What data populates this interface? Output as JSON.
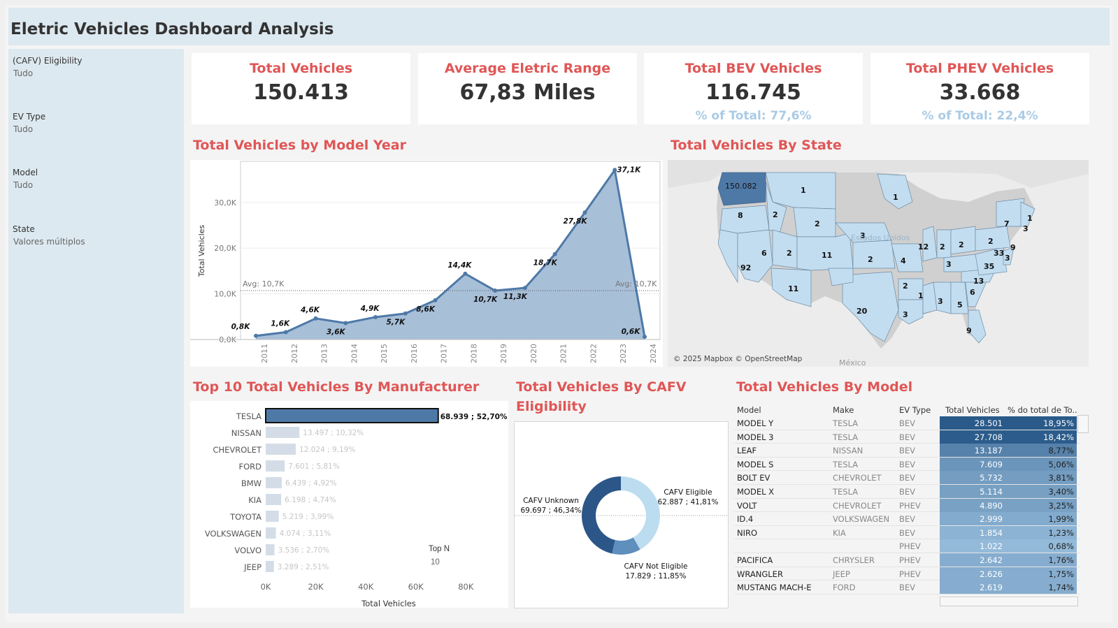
{
  "title": "Eletric Vehicles Dashboard Analysis",
  "filters": [
    {
      "label": "(CAFV) Eligibility",
      "value": "Tudo"
    },
    {
      "label": "EV Type",
      "value": "Tudo"
    },
    {
      "label": "Model",
      "value": "Tudo"
    },
    {
      "label": "State",
      "value": "Valores múltiplos"
    }
  ],
  "kpis": [
    {
      "title": "Total Vehicles",
      "value": "150.413",
      "sub": ""
    },
    {
      "title": "Average Eletric Range",
      "value": "67,83 Miles",
      "sub": ""
    },
    {
      "title": "Total BEV Vehicles",
      "value": "116.745",
      "sub": "% of Total: 77,6%"
    },
    {
      "title": "Total PHEV Vehicles",
      "value": "33.668",
      "sub": "% of Total: 22,4%"
    }
  ],
  "sections": {
    "model_year": "Total Vehicles by Model Year",
    "state": "Total Vehicles By State",
    "manufacturer": "Top 10 Total Vehicles By Manufacturer",
    "cafv": "Total Vehicles By CAFV Eligibility",
    "model": "Total Vehicles By Model"
  },
  "map": {
    "attribution": "© 2025 Mapbox © OpenStreetMap",
    "labels": [
      "150.082",
      "1",
      "1",
      "8",
      "2",
      "2",
      "3",
      "7",
      "3",
      "1",
      "9",
      "2",
      "2",
      "2",
      "12",
      "2",
      "6",
      "2",
      "11",
      "3",
      "4",
      "3",
      "35",
      "33",
      "92",
      "11",
      "20",
      "2",
      "13",
      "1",
      "3",
      "5",
      "6",
      "3",
      "9"
    ],
    "country_text_us": "Estados Unidos",
    "country_text_mx": "México"
  },
  "topn": {
    "label": "Top N",
    "value": "10"
  },
  "colors": {
    "accent": "#e05656",
    "line": "#4e79a7",
    "area": "#a3bcd6",
    "light": "#a9cbe5",
    "dark": "#2a5a8a"
  },
  "chart_data": [
    {
      "type": "area",
      "title": "Total Vehicles by Model Year",
      "ylabel": "Total Vehicles",
      "x": [
        "2011",
        "2012",
        "2013",
        "2014",
        "2015",
        "2016",
        "2017",
        "2018",
        "2019",
        "2020",
        "2021",
        "2022",
        "2023",
        "2024"
      ],
      "values": [
        800,
        1600,
        4600,
        3600,
        4900,
        5700,
        8600,
        14400,
        10700,
        11300,
        18700,
        27800,
        37100,
        600
      ],
      "value_labels": [
        "0,8K",
        "1,6K",
        "4,6K",
        "3,6K",
        "4,9K",
        "5,7K",
        "8,6K",
        "14,4K",
        "10,7K",
        "11,3K",
        "18,7K",
        "27,8K",
        "37,1K",
        "0,6K"
      ],
      "yticks": [
        0,
        10000,
        20000,
        30000
      ],
      "ytick_labels": [
        "0,0K",
        "10,0K",
        "20,0K",
        "30,0K"
      ],
      "ylim": [
        0,
        39000
      ],
      "avg_value": 10700,
      "avg_label": "Avg: 10,7K"
    },
    {
      "type": "bar",
      "title": "Top 10 Total Vehicles By Manufacturer",
      "xlabel": "Total Vehicles",
      "categories": [
        "TESLA",
        "NISSAN",
        "CHEVROLET",
        "FORD",
        "BMW",
        "KIA",
        "TOYOTA",
        "VOLKSWAGEN",
        "VOLVO",
        "JEEP"
      ],
      "values": [
        68939,
        13497,
        12024,
        7601,
        6439,
        6198,
        5219,
        4074,
        3536,
        3289
      ],
      "value_labels": [
        "68.939 ; 52,70%",
        "13.497 ; 10,32%",
        "12.024 ; 9,19%",
        "7.601 ; 5,81%",
        "6.439 ; 4,92%",
        "6.198 ; 4,74%",
        "5.219 ; 3,99%",
        "4.074 ; 3,11%",
        "3.536 ; 2,70%",
        "3.289 ; 2,51%"
      ],
      "xticks": [
        0,
        20000,
        40000,
        60000,
        80000
      ],
      "xtick_labels": [
        "0K",
        "20K",
        "40K",
        "60K",
        "80K"
      ],
      "xlim": [
        0,
        95000
      ]
    },
    {
      "type": "pie",
      "title": "Total Vehicles By CAFV Eligibility",
      "slices": [
        {
          "name": "CAFV Eligible",
          "value": 62887,
          "label": "62.887 ; 41,81%"
        },
        {
          "name": "CAFV Not Eligible",
          "value": 17829,
          "label": "17.829 ; 11,85%"
        },
        {
          "name": "CAFV Unknown",
          "value": 69697,
          "label": "69.697 ; 46,34%"
        }
      ]
    },
    {
      "type": "table",
      "title": "Total Vehicles By Model",
      "columns": [
        "Model",
        "Make",
        "EV Type",
        "Total Vehicles",
        "% do total de To.."
      ],
      "rows": [
        {
          "model": "MODEL Y",
          "make": "TESLA",
          "type": "BEV",
          "tv": "28.501",
          "pct": "18,95%",
          "v": 28501
        },
        {
          "model": "MODEL 3",
          "make": "TESLA",
          "type": "BEV",
          "tv": "27.708",
          "pct": "18,42%",
          "v": 27708
        },
        {
          "model": "LEAF",
          "make": "NISSAN",
          "type": "BEV",
          "tv": "13.187",
          "pct": "8,77%",
          "v": 13187
        },
        {
          "model": "MODEL S",
          "make": "TESLA",
          "type": "BEV",
          "tv": "7.609",
          "pct": "5,06%",
          "v": 7609
        },
        {
          "model": "BOLT EV",
          "make": "CHEVROLET",
          "type": "BEV",
          "tv": "5.732",
          "pct": "3,81%",
          "v": 5732
        },
        {
          "model": "MODEL X",
          "make": "TESLA",
          "type": "BEV",
          "tv": "5.114",
          "pct": "3,40%",
          "v": 5114
        },
        {
          "model": "VOLT",
          "make": "CHEVROLET",
          "type": "PHEV",
          "tv": "4.890",
          "pct": "3,25%",
          "v": 4890
        },
        {
          "model": "ID.4",
          "make": "VOLKSWAGEN",
          "type": "BEV",
          "tv": "2.999",
          "pct": "1,99%",
          "v": 2999
        },
        {
          "model": "NIRO",
          "make": "KIA",
          "type": "BEV",
          "tv": "1.854",
          "pct": "1,23%",
          "v": 1854
        },
        {
          "model": "",
          "make": "",
          "type": "PHEV",
          "tv": "1.022",
          "pct": "0,68%",
          "v": 1022
        },
        {
          "model": "PACIFICA",
          "make": "CHRYSLER",
          "type": "PHEV",
          "tv": "2.642",
          "pct": "1,76%",
          "v": 2642
        },
        {
          "model": "WRANGLER",
          "make": "JEEP",
          "type": "PHEV",
          "tv": "2.626",
          "pct": "1,75%",
          "v": 2626
        },
        {
          "model": "MUSTANG MACH-E",
          "make": "FORD",
          "type": "BEV",
          "tv": "2.619",
          "pct": "1,74%",
          "v": 2619
        }
      ]
    }
  ]
}
